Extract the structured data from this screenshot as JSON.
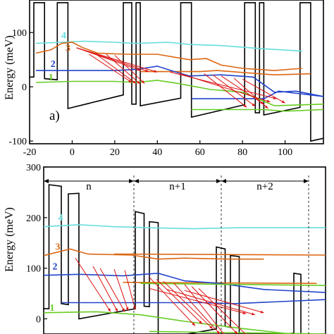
{
  "colors": {
    "axis": "#000000",
    "level_1": "#66cc22",
    "level_2": "#2244cc",
    "level_3": "#dd6611",
    "level_4": "#66dddd",
    "arrows": "#dd1111"
  },
  "chart_data": [
    {
      "id": "a",
      "type": "line",
      "panel_label": "a)",
      "ylabel": "Energy (meV)",
      "xlabel": "",
      "xlim": [
        -20,
        118
      ],
      "ylim": [
        -105,
        160
      ],
      "x_ticks": [
        -20,
        0,
        20,
        40,
        60,
        80,
        100
      ],
      "y_ticks": [
        -100,
        0,
        100
      ],
      "level_labels": [
        {
          "text": "4",
          "level": "level_4",
          "x": -4,
          "y": 85
        },
        {
          "text": "3",
          "level": "level_3",
          "x": -2,
          "y": 62
        },
        {
          "text": "2",
          "level": "level_2",
          "x": -9,
          "y": 33
        },
        {
          "text": "1",
          "level": "level_1",
          "x": -10,
          "y": 8
        }
      ],
      "band_profile": [
        [
          -20,
          18
        ],
        [
          -18,
          18
        ],
        [
          -18,
          155
        ],
        [
          -13,
          155
        ],
        [
          -13,
          15
        ],
        [
          -7,
          13
        ],
        [
          -7,
          155
        ],
        [
          -2,
          155
        ],
        [
          -2,
          -40
        ],
        [
          24,
          -15
        ],
        [
          24,
          155
        ],
        [
          28,
          155
        ],
        [
          28,
          -32
        ],
        [
          30,
          -32
        ],
        [
          30,
          155
        ],
        [
          32,
          155
        ],
        [
          32,
          -35
        ],
        [
          51,
          -21
        ],
        [
          51,
          155
        ],
        [
          56,
          155
        ],
        [
          56,
          -56
        ],
        [
          81,
          -33
        ],
        [
          81,
          155
        ],
        [
          86,
          155
        ],
        [
          86,
          -48
        ],
        [
          88,
          -48
        ],
        [
          88,
          155
        ],
        [
          90,
          155
        ],
        [
          90,
          -52
        ],
        [
          107,
          -38
        ],
        [
          107,
          155
        ],
        [
          112,
          155
        ],
        [
          112,
          -100
        ],
        [
          118,
          -95
        ]
      ],
      "levels": [
        {
          "name": "level_4",
          "points": [
            [
              -17,
              80
            ],
            [
              -5,
              82
            ],
            [
              5,
              84
            ],
            [
              20,
              82
            ],
            [
              30,
              80
            ],
            [
              45,
              82
            ],
            [
              55,
              78
            ],
            [
              70,
              76
            ],
            [
              90,
              70
            ],
            [
              108,
              66
            ]
          ]
        },
        {
          "name": "level_3",
          "points": [
            [
              -17,
              62
            ],
            [
              -10,
              68
            ],
            [
              -5,
              80
            ],
            [
              0,
              82
            ],
            [
              5,
              72
            ],
            [
              12,
              62
            ],
            [
              25,
              60
            ],
            [
              40,
              60
            ],
            [
              55,
              50
            ],
            [
              63,
              52
            ],
            [
              70,
              40
            ],
            [
              80,
              34
            ],
            [
              95,
              30
            ],
            [
              108,
              34
            ]
          ]
        },
        {
          "name": "level_3",
          "points": [
            [
              32,
              28
            ],
            [
              60,
              28
            ],
            [
              68,
              30
            ],
            [
              95,
              22
            ],
            [
              112,
              24
            ]
          ]
        },
        {
          "name": "level_2",
          "points": [
            [
              -17,
              30
            ],
            [
              -5,
              30
            ],
            [
              5,
              30
            ],
            [
              20,
              30
            ],
            [
              30,
              32
            ],
            [
              40,
              38
            ],
            [
              48,
              28
            ],
            [
              55,
              20
            ],
            [
              70,
              22
            ],
            [
              85,
              18
            ],
            [
              95,
              -10
            ],
            [
              105,
              -8
            ],
            [
              118,
              -18
            ]
          ]
        },
        {
          "name": "level_2",
          "points": [
            [
              56,
              -22
            ],
            [
              90,
              -22
            ],
            [
              97,
              -8
            ],
            [
              118,
              -18
            ]
          ]
        },
        {
          "name": "level_1",
          "points": [
            [
              -17,
              8
            ],
            [
              0,
              10
            ],
            [
              20,
              10
            ],
            [
              30,
              8
            ],
            [
              40,
              12
            ],
            [
              50,
              6
            ],
            [
              65,
              -5
            ],
            [
              80,
              -10
            ],
            [
              95,
              -35
            ],
            [
              118,
              -32
            ]
          ]
        },
        {
          "name": "level_1",
          "points": [
            [
              56,
              -42
            ],
            [
              90,
              -42
            ],
            [
              100,
              -45
            ],
            [
              118,
              -42
            ]
          ]
        }
      ],
      "transitions": [
        [
          [
            2,
            72
          ],
          [
            32,
            30
          ]
        ],
        [
          [
            2,
            72
          ],
          [
            36,
            28
          ]
        ],
        [
          [
            2,
            72
          ],
          [
            40,
            27
          ]
        ],
        [
          [
            8,
            60
          ],
          [
            28,
            8
          ]
        ],
        [
          [
            12,
            58
          ],
          [
            30,
            6
          ]
        ],
        [
          [
            16,
            60
          ],
          [
            32,
            5
          ]
        ],
        [
          [
            20,
            58
          ],
          [
            34,
            6
          ]
        ],
        [
          [
            46,
            27
          ],
          [
            96,
            -22
          ]
        ],
        [
          [
            50,
            25
          ],
          [
            93,
            -28
          ]
        ],
        [
          [
            62,
            24
          ],
          [
            82,
            -38
          ]
        ],
        [
          [
            66,
            22
          ],
          [
            86,
            -36
          ]
        ],
        [
          [
            70,
            20
          ],
          [
            90,
            -32
          ]
        ],
        [
          [
            76,
            16
          ],
          [
            92,
            -40
          ]
        ],
        [
          [
            80,
            14
          ],
          [
            100,
            -30
          ]
        ]
      ]
    },
    {
      "id": "b",
      "type": "line",
      "panel_label": "",
      "ylabel": "Energy (meV)",
      "xlabel": "",
      "ylim": [
        -30,
        300
      ],
      "y_ticks": [
        0,
        100,
        200,
        300
      ],
      "period_labels": [
        "n",
        "n+1",
        "n+2"
      ],
      "level_labels": [
        {
          "text": "4",
          "level": "level_4",
          "y": 190
        },
        {
          "text": "3",
          "level": "level_3",
          "y": 132
        },
        {
          "text": "2",
          "level": "level_2",
          "y": 93
        },
        {
          "text": "1",
          "level": "level_1",
          "y": 12
        }
      ],
      "band_profile": [
        [
          0,
          20
        ],
        [
          3,
          20
        ],
        [
          3,
          265
        ],
        [
          10,
          262
        ],
        [
          10,
          30
        ],
        [
          14,
          28
        ],
        [
          14,
          247
        ],
        [
          20,
          248
        ],
        [
          20,
          0
        ],
        [
          52,
          20
        ],
        [
          52,
          212
        ],
        [
          57,
          208
        ],
        [
          57,
          25
        ],
        [
          60,
          24
        ],
        [
          60,
          192
        ],
        [
          65,
          190
        ],
        [
          65,
          -40
        ],
        [
          98,
          -20
        ],
        [
          98,
          142
        ],
        [
          103,
          138
        ],
        [
          103,
          -15
        ],
        [
          106,
          -17
        ],
        [
          106,
          125
        ],
        [
          111,
          123
        ],
        [
          111,
          -45
        ],
        [
          142,
          -28
        ],
        [
          142,
          90
        ],
        [
          146,
          88
        ],
        [
          146,
          -60
        ],
        [
          160,
          -58
        ]
      ],
      "levels": [
        {
          "name": "level_4",
          "points": [
            [
              0,
              182
            ],
            [
              20,
              186
            ],
            [
              40,
              182
            ],
            [
              60,
              180
            ],
            [
              85,
              178
            ],
            [
              110,
              180
            ],
            [
              160,
              180
            ]
          ]
        },
        {
          "name": "level_3",
          "points": [
            [
              0,
              125
            ],
            [
              15,
              138
            ],
            [
              25,
              128
            ],
            [
              50,
              126
            ],
            [
              65,
              118
            ],
            [
              80,
              120
            ],
            [
              105,
              118
            ],
            [
              125,
              118
            ]
          ]
        },
        {
          "name": "level_3",
          "points": [
            [
              40,
              128
            ],
            [
              160,
              126
            ]
          ]
        },
        {
          "name": "level_3",
          "points": [
            [
              45,
              72
            ],
            [
              155,
              70
            ]
          ]
        },
        {
          "name": "level_2",
          "points": [
            [
              0,
              86
            ],
            [
              20,
              88
            ],
            [
              45,
              85
            ],
            [
              65,
              90
            ],
            [
              80,
              75
            ],
            [
              100,
              70
            ],
            [
              125,
              58
            ],
            [
              160,
              52
            ]
          ]
        },
        {
          "name": "level_2",
          "points": [
            [
              10,
              32
            ],
            [
              65,
              32
            ],
            [
              90,
              32
            ],
            [
              108,
              30
            ],
            [
              160,
              38
            ]
          ]
        },
        {
          "name": "level_1",
          "points": [
            [
              0,
              12
            ],
            [
              30,
              14
            ],
            [
              55,
              8
            ],
            [
              80,
              -5
            ],
            [
              110,
              -18
            ],
            [
              140,
              -30
            ],
            [
              160,
              -35
            ]
          ]
        },
        {
          "name": "level_1",
          "points": [
            [
              55,
              70
            ],
            [
              160,
              66
            ]
          ]
        },
        {
          "name": "level_1",
          "points": [
            [
              60,
              -25
            ],
            [
              160,
              -30
            ]
          ]
        }
      ],
      "transitions": [
        [
          [
            18,
            120
          ],
          [
            38,
            14
          ]
        ],
        [
          [
            28,
            104
          ],
          [
            42,
            14
          ]
        ],
        [
          [
            32,
            100
          ],
          [
            46,
            14
          ]
        ],
        [
          [
            40,
            98
          ],
          [
            48,
            16
          ]
        ],
        [
          [
            46,
            96
          ],
          [
            52,
            18
          ]
        ],
        [
          [
            60,
            82
          ],
          [
            86,
            -14
          ]
        ],
        [
          [
            64,
            78
          ],
          [
            90,
            -10
          ]
        ],
        [
          [
            68,
            74
          ],
          [
            96,
            -20
          ]
        ],
        [
          [
            74,
            70
          ],
          [
            100,
            -30
          ]
        ],
        [
          [
            80,
            68
          ],
          [
            104,
            -38
          ]
        ],
        [
          [
            84,
            64
          ],
          [
            110,
            -30
          ]
        ],
        [
          [
            88,
            60
          ],
          [
            116,
            -35
          ]
        ],
        [
          [
            60,
            60
          ],
          [
            115,
            10
          ]
        ],
        [
          [
            70,
            58
          ],
          [
            120,
            8
          ]
        ],
        [
          [
            80,
            56
          ],
          [
            125,
            12
          ]
        ]
      ]
    }
  ]
}
